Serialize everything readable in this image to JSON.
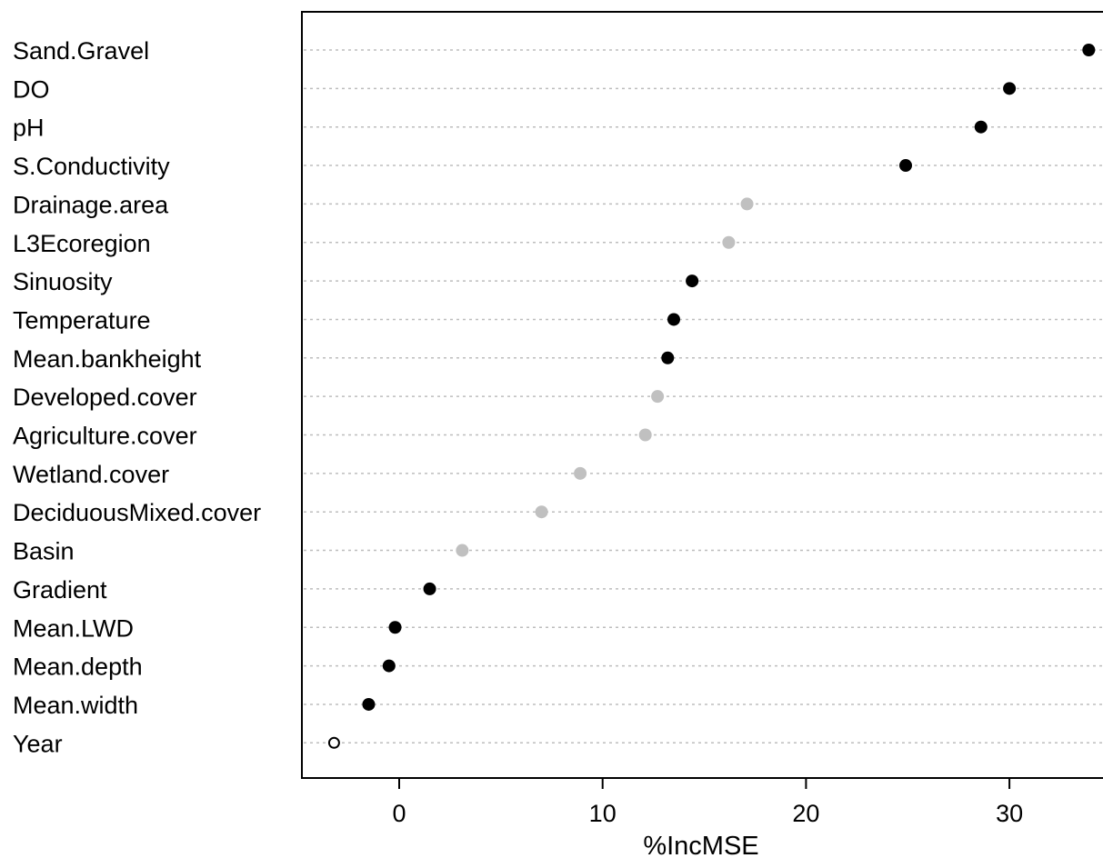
{
  "chart_data": {
    "type": "scatter",
    "title": "",
    "xlabel": "%IncMSE",
    "ylabel": "",
    "xlim": [
      -4.8,
      34.7
    ],
    "xticks": [
      0,
      10,
      20,
      30
    ],
    "xtick_labels": [
      "0",
      "10",
      "20",
      "30"
    ],
    "grid": true,
    "categories": [
      "Sand.Gravel",
      "DO",
      "pH",
      "S.Conductivity",
      "Drainage.area",
      "L3Ecoregion",
      "Sinuosity",
      "Temperature",
      "Mean.bankheight",
      "Developed.cover",
      "Agriculture.cover",
      "Wetland.cover",
      "DeciduousMixed.cover",
      "Basin",
      "Gradient",
      "Mean.LWD",
      "Mean.depth",
      "Mean.width",
      "Year"
    ],
    "values": [
      33.9,
      30.0,
      28.6,
      24.9,
      17.1,
      16.2,
      14.4,
      13.5,
      13.2,
      12.7,
      12.1,
      8.9,
      7.0,
      3.1,
      1.5,
      -0.2,
      -0.5,
      -1.5,
      -3.2
    ],
    "point_styles": [
      "black-filled",
      "black-filled",
      "black-filled",
      "black-filled",
      "grey-filled",
      "grey-filled",
      "black-filled",
      "black-filled",
      "black-filled",
      "grey-filled",
      "grey-filled",
      "grey-filled",
      "grey-filled",
      "grey-filled",
      "black-filled",
      "black-filled",
      "black-filled",
      "black-filled",
      "open"
    ],
    "colors": {
      "black-filled": "#000000",
      "grey-filled": "#c0c0c0",
      "open-stroke": "#000000",
      "open-fill": "#ffffff",
      "guide": "#bdbdbd",
      "axis": "#000000"
    }
  }
}
